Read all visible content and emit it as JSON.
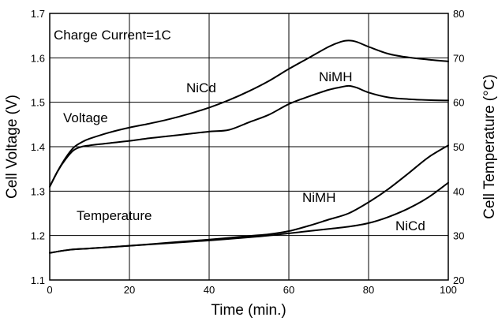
{
  "chart_data": {
    "type": "line",
    "xlabel": "Time (min.)",
    "ylabel_left": "Cell Voltage (V)",
    "ylabel_right": "Cell Temperature (°C)",
    "xlim": [
      0,
      100
    ],
    "ylim_left": [
      1.1,
      1.7
    ],
    "ylim_right": [
      20,
      80
    ],
    "x_ticks": [
      "0",
      "20",
      "40",
      "60",
      "80",
      "100"
    ],
    "y_left_ticks": [
      "1.1",
      "1.2",
      "1.3",
      "1.4",
      "1.5",
      "1.6",
      "1.7"
    ],
    "y_right_ticks": [
      "20",
      "30",
      "40",
      "50",
      "60",
      "70",
      "80"
    ],
    "grid": true,
    "annotations": {
      "charge_current": "Charge Current=1C",
      "voltage": "Voltage",
      "temperature": "Temperature",
      "nicd_voltage": "NiCd",
      "nimh_voltage": "NiMH",
      "nimh_temp": "NiMH",
      "nicd_temp": "NiCd"
    },
    "series": [
      {
        "axis": "left",
        "x": [
          0,
          2,
          4,
          6,
          8,
          10,
          15,
          20,
          25,
          30,
          35,
          40,
          45,
          50,
          55,
          60,
          65,
          70,
          73,
          75,
          77,
          80,
          85,
          90,
          95,
          100
        ],
        "values": [
          1.31,
          1.345,
          1.375,
          1.398,
          1.41,
          1.418,
          1.432,
          1.443,
          1.452,
          1.462,
          1.474,
          1.488,
          1.505,
          1.525,
          1.548,
          1.575,
          1.6,
          1.625,
          1.636,
          1.639,
          1.636,
          1.625,
          1.609,
          1.601,
          1.596,
          1.592
        ]
      },
      {
        "axis": "left",
        "x": [
          0,
          2,
          4,
          6,
          8,
          10,
          15,
          20,
          25,
          30,
          35,
          40,
          45,
          50,
          55,
          60,
          65,
          70,
          73,
          75,
          77,
          80,
          85,
          90,
          95,
          100
        ],
        "values": [
          1.31,
          1.345,
          1.372,
          1.392,
          1.4,
          1.403,
          1.408,
          1.413,
          1.419,
          1.424,
          1.429,
          1.434,
          1.438,
          1.455,
          1.472,
          1.496,
          1.513,
          1.528,
          1.534,
          1.537,
          1.533,
          1.522,
          1.511,
          1.507,
          1.505,
          1.504
        ]
      },
      {
        "axis": "right",
        "x": [
          0,
          5,
          10,
          20,
          30,
          40,
          50,
          55,
          60,
          65,
          70,
          75,
          80,
          85,
          90,
          95,
          100
        ],
        "values": [
          26.1,
          26.8,
          27.1,
          27.7,
          28.4,
          29.1,
          29.9,
          30.3,
          31.0,
          32.2,
          33.6,
          35.0,
          37.5,
          40.5,
          44.0,
          47.6,
          50.3
        ]
      },
      {
        "axis": "right",
        "x": [
          0,
          5,
          10,
          20,
          30,
          40,
          50,
          55,
          60,
          65,
          70,
          75,
          80,
          85,
          90,
          95,
          100
        ],
        "values": [
          26.1,
          26.8,
          27.1,
          27.7,
          28.3,
          28.9,
          29.6,
          30.0,
          30.5,
          31.0,
          31.5,
          32.0,
          32.8,
          34.2,
          36.1,
          38.6,
          41.9
        ]
      }
    ]
  }
}
